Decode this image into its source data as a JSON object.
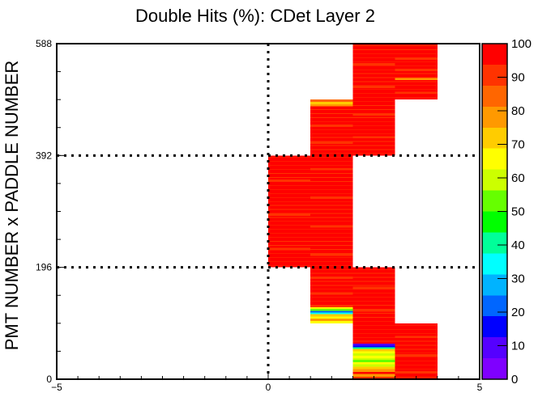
{
  "chart_data": {
    "type": "heatmap",
    "title": "Double Hits (%): CDet Layer 2",
    "xlabel": "",
    "ylabel": "PMT NUMBER x PADDLE NUMBER",
    "xlim": [
      -5,
      5
    ],
    "ylim": [
      0,
      588
    ],
    "x_ticks": [
      "−5",
      "0",
      "5"
    ],
    "y_ticks": [
      "0",
      "196",
      "392",
      "588"
    ],
    "zlim": [
      0,
      100
    ],
    "z_ticks": [
      "0",
      "10",
      "20",
      "30",
      "40",
      "50",
      "60",
      "70",
      "80",
      "90",
      "100"
    ],
    "palette": [
      "#7f00ff",
      "#5500ff",
      "#0000ff",
      "#0066ff",
      "#00b3ff",
      "#00ffff",
      "#00ff99",
      "#00ff00",
      "#66ff00",
      "#ccff00",
      "#ffff00",
      "#ffcc00",
      "#ff9900",
      "#ff6600",
      "#ff3300",
      "#ff0000"
    ],
    "grid_lines": {
      "x": [
        0
      ],
      "y": [
        196,
        392
      ],
      "style": "dotted"
    },
    "bin_width_x": 1,
    "default_value": 97,
    "blocks": [
      {
        "x": [
          2,
          3
        ],
        "y": [
          0,
          98
        ],
        "overrides": [
          [
            0,
            4,
            88
          ],
          [
            4,
            9,
            77
          ],
          [
            9,
            13,
            96
          ],
          [
            13,
            18,
            75
          ],
          [
            18,
            22,
            69
          ],
          [
            22,
            26,
            58
          ],
          [
            26,
            30,
            66
          ],
          [
            30,
            34,
            55
          ],
          [
            34,
            37,
            62
          ],
          [
            37,
            41,
            68
          ],
          [
            41,
            45,
            60
          ],
          [
            45,
            49,
            64
          ],
          [
            49,
            53,
            72
          ],
          [
            53,
            56,
            40
          ],
          [
            56,
            59,
            18
          ],
          [
            59,
            62,
            8
          ]
        ]
      },
      {
        "x": [
          3,
          4
        ],
        "y": [
          0,
          98
        ],
        "overrides": [
          [
            10,
            14,
            92
          ],
          [
            40,
            44,
            90
          ],
          [
            72,
            76,
            91
          ]
        ]
      },
      {
        "x": [
          1,
          2
        ],
        "y": [
          98,
          196
        ],
        "overrides": [
          [
            0,
            4,
            68
          ],
          [
            4,
            8,
            75
          ],
          [
            8,
            12,
            63
          ],
          [
            12,
            16,
            70
          ],
          [
            16,
            19,
            33
          ],
          [
            19,
            22,
            22
          ],
          [
            22,
            25,
            55
          ],
          [
            25,
            28,
            65
          ],
          [
            28,
            32,
            88
          ],
          [
            50,
            54,
            92
          ],
          [
            78,
            82,
            91
          ]
        ]
      },
      {
        "x": [
          2,
          3
        ],
        "y": [
          98,
          196
        ],
        "overrides": [
          [
            20,
            24,
            90
          ],
          [
            60,
            64,
            92
          ]
        ]
      },
      {
        "x": [
          0,
          1
        ],
        "y": [
          196,
          392
        ],
        "overrides": [
          [
            30,
            34,
            90
          ],
          [
            90,
            94,
            91
          ],
          [
            150,
            154,
            92
          ]
        ]
      },
      {
        "x": [
          1,
          2
        ],
        "y": [
          196,
          392
        ],
        "overrides": [
          [
            20,
            24,
            90
          ],
          [
            70,
            74,
            91
          ],
          [
            120,
            124,
            89
          ],
          [
            170,
            174,
            92
          ]
        ]
      },
      {
        "x": [
          1,
          2
        ],
        "y": [
          392,
          490
        ],
        "overrides": [
          [
            20,
            24,
            92
          ],
          [
            50,
            54,
            90
          ],
          [
            86,
            90,
            76
          ],
          [
            90,
            94,
            72
          ],
          [
            94,
            98,
            82
          ]
        ]
      },
      {
        "x": [
          2,
          3
        ],
        "y": [
          392,
          490
        ],
        "overrides": [
          [
            30,
            34,
            91
          ],
          [
            70,
            74,
            90
          ]
        ]
      },
      {
        "x": [
          2,
          3
        ],
        "y": [
          490,
          588
        ],
        "overrides": [
          [
            20,
            24,
            90
          ],
          [
            60,
            64,
            91
          ]
        ]
      },
      {
        "x": [
          3,
          4
        ],
        "y": [
          490,
          588
        ],
        "overrides": [
          [
            10,
            14,
            92
          ],
          [
            34,
            38,
            78
          ],
          [
            50,
            54,
            90
          ],
          [
            70,
            74,
            91
          ]
        ]
      }
    ]
  }
}
